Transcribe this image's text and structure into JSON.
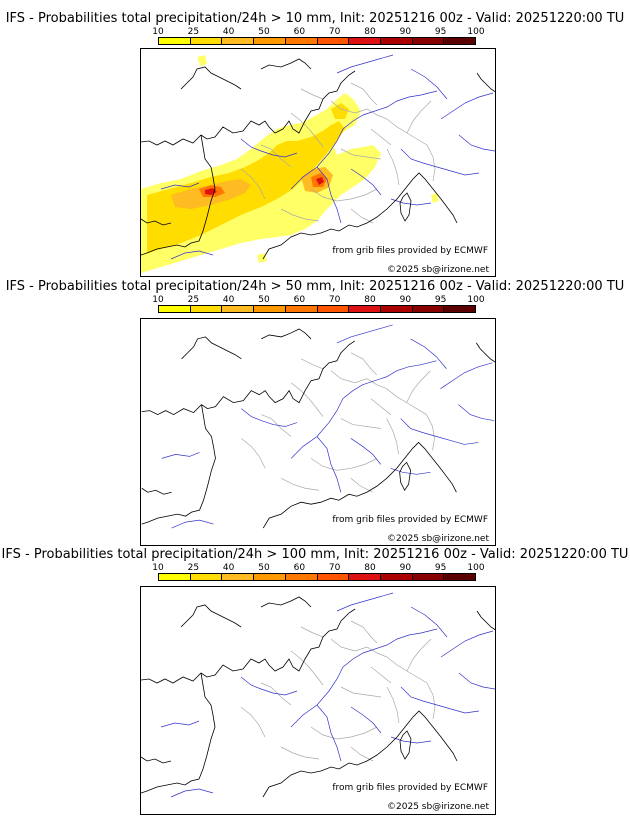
{
  "colorbar": {
    "ticks": [
      "10",
      "25",
      "40",
      "50",
      "60",
      "70",
      "80",
      "90",
      "95",
      "100"
    ],
    "colors": [
      "#ffff00",
      "#ffdd00",
      "#ffbb22",
      "#ff9900",
      "#ff7700",
      "#ff5500",
      "#dd1111",
      "#aa0000",
      "#880000",
      "#5a0000"
    ]
  },
  "map_colors": {
    "coast": "#000000",
    "rivers": "#3333cc",
    "borders": "#aaaaaa"
  },
  "panels": [
    {
      "title": "IFS - Probabilities total precipitation/24h > 10 mm, Init: 20251216 00z - Valid: 20251220:00 TU",
      "credit_source": "from grib files provided by ECMWF",
      "credit_copyright": "©2025 sb@irizone.net",
      "has_precip": true
    },
    {
      "title": "IFS - Probabilities total precipitation/24h > 50 mm, Init: 20251216 00z - Valid: 20251220:00 TU",
      "credit_source": "from grib files provided by ECMWF",
      "credit_copyright": "©2025 sb@irizone.net",
      "has_precip": false
    },
    {
      "title": "IFS - Probabilities total precipitation/24h > 100 mm, Init: 20251216 00z - Valid: 20251220:00 TU",
      "credit_source": "from grib files provided by ECMWF",
      "credit_copyright": "©2025 sb@irizone.net",
      "has_precip": false
    }
  ]
}
